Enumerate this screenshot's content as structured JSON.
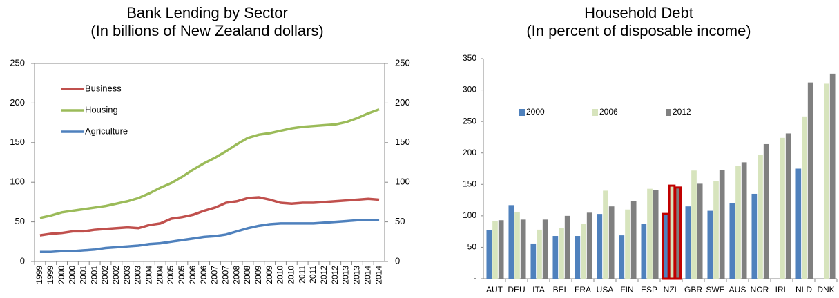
{
  "chart_data": [
    {
      "type": "line",
      "title": "Bank Lending by Sector",
      "subtitle": "(In billions of New Zealand dollars)",
      "categories": [
        "1999",
        "1999",
        "2000",
        "2000",
        "2001",
        "2001",
        "2002",
        "2002",
        "2003",
        "2003",
        "2004",
        "2004",
        "2005",
        "2005",
        "2006",
        "2006",
        "2007",
        "2007",
        "2008",
        "2008",
        "2009",
        "2009",
        "2010",
        "2010",
        "2011",
        "2011",
        "2012",
        "2012",
        "2013",
        "2013",
        "2014",
        "2014"
      ],
      "series": [
        {
          "name": "Business",
          "color": "#c0504d",
          "values": [
            33,
            35,
            36,
            38,
            38,
            40,
            41,
            42,
            43,
            42,
            46,
            48,
            54,
            56,
            59,
            64,
            68,
            74,
            76,
            80,
            81,
            78,
            74,
            73,
            74,
            74,
            75,
            76,
            77,
            78,
            79,
            78
          ]
        },
        {
          "name": "Housing",
          "color": "#9bbb59",
          "values": [
            55,
            58,
            62,
            64,
            66,
            68,
            70,
            73,
            76,
            80,
            86,
            93,
            99,
            107,
            116,
            124,
            131,
            139,
            148,
            156,
            160,
            162,
            165,
            168,
            170,
            171,
            172,
            173,
            176,
            181,
            187,
            192
          ]
        },
        {
          "name": "Agriculture",
          "color": "#4f81bd",
          "values": [
            12,
            12,
            13,
            13,
            14,
            15,
            17,
            18,
            19,
            20,
            22,
            23,
            25,
            27,
            29,
            31,
            32,
            34,
            38,
            42,
            45,
            47,
            48,
            48,
            48,
            48,
            49,
            50,
            51,
            52,
            52,
            52
          ]
        }
      ],
      "ylim": [
        0,
        250
      ],
      "yticks": [
        0,
        50,
        100,
        150,
        200,
        250
      ],
      "y2lim": [
        0,
        250
      ],
      "y2ticks": [
        0,
        50,
        100,
        150,
        200,
        250
      ]
    },
    {
      "type": "bar",
      "title": "Household Debt",
      "subtitle": "(In percent of disposable income)",
      "categories": [
        "AUT",
        "DEU",
        "ITA",
        "BEL",
        "FRA",
        "USA",
        "FIN",
        "ESP",
        "NZL",
        "GBR",
        "SWE",
        "AUS",
        "NOR",
        "IRL",
        "NLD",
        "DNK"
      ],
      "series": [
        {
          "name": "2000",
          "color": "#4f81bd",
          "values": [
            77,
            117,
            56,
            68,
            68,
            103,
            69,
            87,
            103,
            115,
            108,
            120,
            135,
            null,
            175,
            null
          ]
        },
        {
          "name": "2006",
          "color": "#d7e4bd",
          "values": [
            92,
            106,
            78,
            81,
            87,
            140,
            110,
            143,
            148,
            172,
            155,
            179,
            197,
            224,
            258,
            310
          ]
        },
        {
          "name": "2012",
          "color": "#808080",
          "values": [
            93,
            94,
            94,
            100,
            105,
            115,
            123,
            141,
            145,
            151,
            173,
            185,
            214,
            231,
            312,
            326
          ]
        }
      ],
      "highlight": "NZL",
      "ylim": [
        0,
        350
      ],
      "yticks": [
        {
          "value": 0,
          "label": "-"
        },
        50,
        100,
        150,
        200,
        250,
        300,
        350
      ]
    }
  ]
}
